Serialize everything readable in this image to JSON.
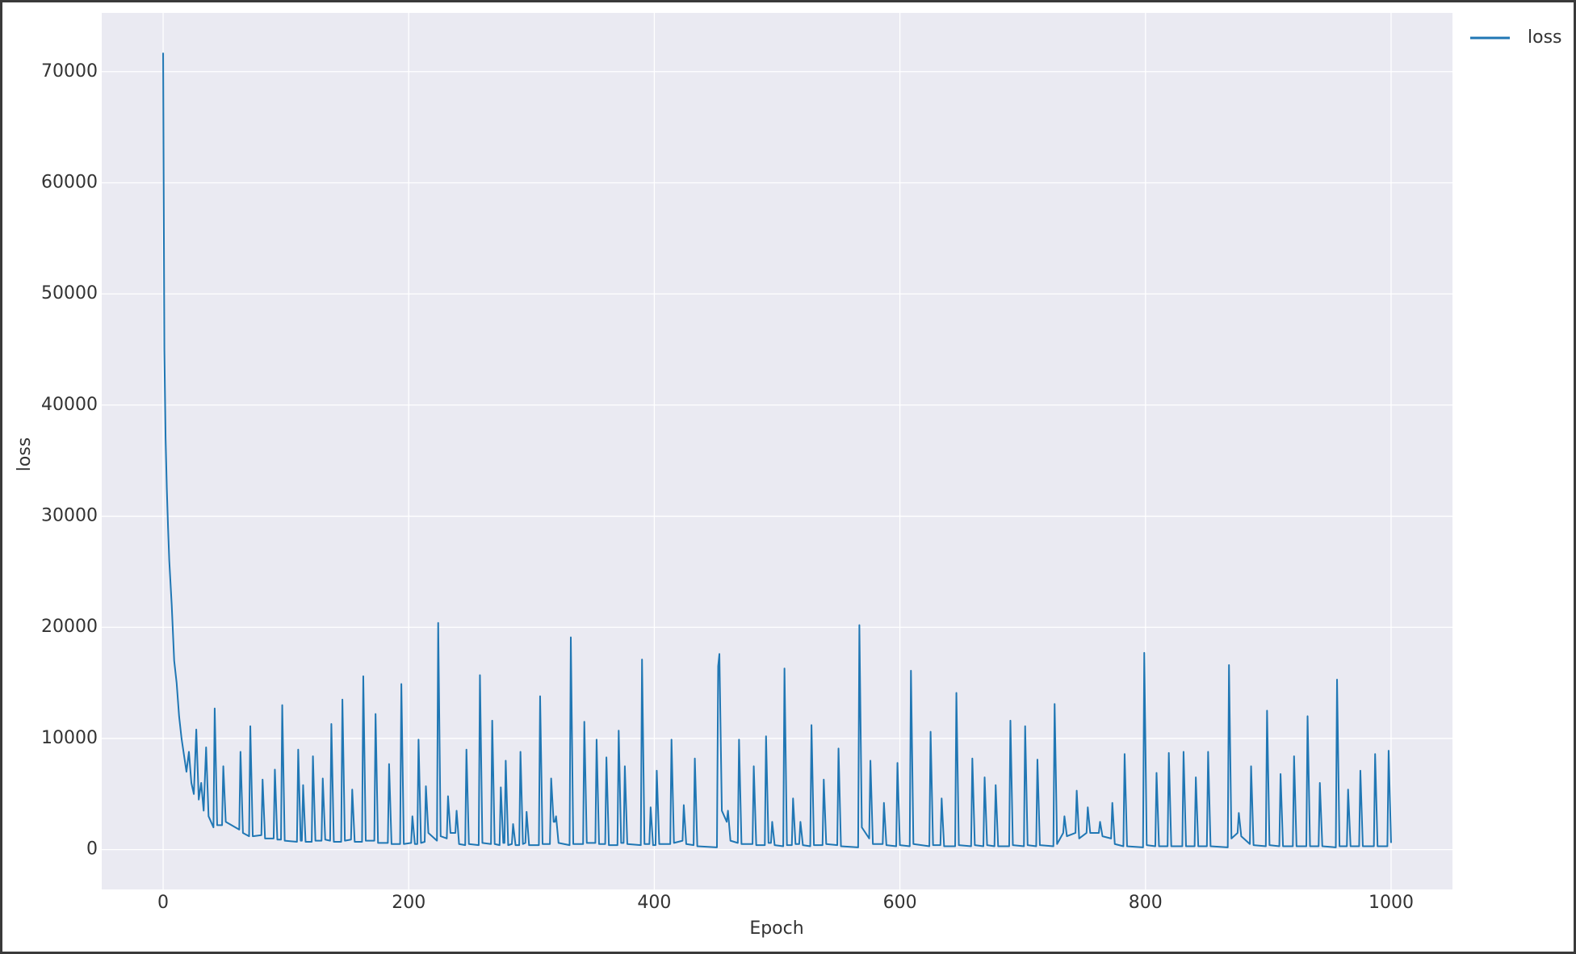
{
  "chart_data": {
    "type": "line",
    "xlabel": "Epoch",
    "ylabel": "loss",
    "xlim": [
      -50,
      1050
    ],
    "ylim": [
      -3585,
      75285
    ],
    "xticks": [
      0,
      200,
      400,
      600,
      800,
      1000
    ],
    "yticks": [
      0,
      10000,
      20000,
      30000,
      40000,
      50000,
      60000,
      70000
    ],
    "grid": true,
    "legend": "upper right",
    "x": [
      0,
      1,
      2,
      3,
      4,
      5,
      7,
      9,
      11,
      13,
      15,
      17,
      19,
      21,
      23,
      25,
      27,
      29,
      31,
      33,
      35,
      37,
      39,
      41,
      42,
      44,
      48,
      49,
      51,
      62,
      63,
      65,
      70,
      71,
      73,
      80,
      81,
      83,
      90,
      91,
      93,
      96,
      97,
      99,
      109,
      110,
      112,
      113,
      114,
      116,
      121,
      122,
      124,
      129,
      130,
      132,
      136,
      137,
      139,
      145,
      146,
      148,
      153,
      154,
      156,
      162,
      163,
      165,
      172,
      173,
      175,
      183,
      184,
      186,
      193,
      194,
      196,
      202,
      203,
      205,
      207,
      208,
      210,
      213,
      214,
      216,
      223,
      224,
      226,
      231,
      232,
      234,
      238,
      239,
      241,
      246,
      247,
      249,
      257,
      258,
      260,
      267,
      268,
      270,
      274,
      275,
      277,
      278,
      279,
      281,
      284,
      285,
      287,
      290,
      291,
      293,
      295,
      296,
      298,
      306,
      307,
      309,
      315,
      316,
      318,
      319,
      320,
      322,
      331,
      332,
      334,
      342,
      343,
      345,
      352,
      353,
      355,
      360,
      361,
      363,
      370,
      371,
      373,
      375,
      376,
      378,
      389,
      390,
      392,
      396,
      397,
      399,
      401,
      402,
      404,
      413,
      414,
      416,
      423,
      424,
      426,
      432,
      433,
      435,
      451,
      452,
      453,
      455,
      459,
      460,
      462,
      468,
      469,
      471,
      480,
      481,
      483,
      490,
      491,
      493,
      495,
      496,
      498,
      505,
      506,
      508,
      512,
      513,
      515,
      518,
      519,
      521,
      527,
      528,
      530,
      537,
      538,
      540,
      549,
      550,
      552,
      566,
      567,
      569,
      575,
      576,
      578,
      586,
      587,
      589,
      597,
      598,
      600,
      608,
      609,
      611,
      624,
      625,
      627,
      633,
      634,
      636,
      645,
      646,
      648,
      658,
      659,
      661,
      668,
      669,
      671,
      677,
      678,
      680,
      689,
      690,
      692,
      701,
      702,
      704,
      711,
      712,
      714,
      725,
      726,
      728,
      733,
      734,
      736,
      743,
      744,
      746,
      752,
      753,
      755,
      762,
      763,
      765,
      772,
      773,
      775,
      782,
      783,
      785,
      798,
      799,
      801,
      808,
      809,
      811,
      818,
      819,
      821,
      830,
      831,
      833,
      840,
      841,
      843,
      850,
      851,
      853,
      867,
      868,
      870,
      875,
      876,
      878,
      885,
      886,
      888,
      898,
      899,
      901,
      909,
      910,
      912,
      920,
      921,
      923,
      931,
      932,
      934,
      941,
      942,
      944,
      955,
      956,
      958,
      964,
      965,
      967,
      974,
      975,
      977,
      986,
      987,
      989,
      997,
      998,
      1000
    ],
    "series": [
      {
        "name": "loss",
        "color": "#2077b4",
        "values": [
          71700,
          45000,
          37000,
          32500,
          29000,
          26000,
          22000,
          17000,
          15000,
          12000,
          10000,
          8500,
          7000,
          8800,
          6000,
          5000,
          10800,
          4500,
          6000,
          3500,
          9200,
          3000,
          2500,
          2000,
          12700,
          2200,
          2200,
          7500,
          2500,
          1800,
          8800,
          1500,
          1200,
          11100,
          1200,
          1300,
          6300,
          1000,
          1000,
          7200,
          900,
          900,
          13000,
          800,
          700,
          9000,
          800,
          800,
          5800,
          700,
          700,
          8400,
          800,
          800,
          6400,
          900,
          800,
          11300,
          700,
          700,
          13500,
          800,
          900,
          5400,
          700,
          700,
          15600,
          800,
          800,
          12200,
          600,
          600,
          7700,
          500,
          500,
          14900,
          500,
          600,
          3000,
          500,
          500,
          9900,
          600,
          700,
          5700,
          1500,
          800,
          20400,
          1200,
          1000,
          4800,
          1500,
          1500,
          3500,
          500,
          400,
          9000,
          500,
          400,
          15700,
          600,
          500,
          11600,
          500,
          400,
          5600,
          600,
          600,
          8000,
          400,
          500,
          2300,
          400,
          400,
          8800,
          500,
          600,
          3400,
          400,
          400,
          13800,
          500,
          500,
          6400,
          2500,
          2500,
          3000,
          600,
          400,
          19100,
          500,
          500,
          11500,
          600,
          600,
          9900,
          500,
          500,
          8300,
          400,
          400,
          10700,
          600,
          600,
          7500,
          500,
          400,
          17100,
          500,
          500,
          3800,
          400,
          400,
          7100,
          500,
          500,
          9900,
          600,
          800,
          4000,
          500,
          400,
          8200,
          300,
          200,
          16500,
          17600,
          3500,
          2500,
          3500,
          800,
          600,
          9900,
          500,
          500,
          7500,
          400,
          400,
          10200,
          600,
          600,
          2500,
          400,
          300,
          16300,
          400,
          400,
          4600,
          500,
          500,
          2500,
          400,
          300,
          11200,
          400,
          400,
          6300,
          500,
          400,
          9100,
          300,
          200,
          20200,
          2000,
          1000,
          8000,
          500,
          500,
          4200,
          400,
          300,
          7800,
          400,
          300,
          16100,
          500,
          300,
          10600,
          400,
          400,
          4600,
          300,
          300,
          14100,
          400,
          300,
          8200,
          400,
          300,
          6500,
          400,
          300,
          5800,
          300,
          300,
          11600,
          400,
          300,
          11100,
          400,
          300,
          8100,
          400,
          300,
          13100,
          500,
          1500,
          3000,
          1200,
          1500,
          5300,
          1000,
          1500,
          3800,
          1500,
          1500,
          2500,
          1200,
          1000,
          4200,
          500,
          300,
          8600,
          300,
          200,
          17700,
          400,
          300,
          6900,
          300,
          300,
          8700,
          300,
          300,
          8800,
          300,
          300,
          6500,
          300,
          300,
          8800,
          300,
          200,
          16600,
          1000,
          1500,
          3300,
          1200,
          500,
          7500,
          400,
          300,
          12500,
          400,
          300,
          6800,
          300,
          300,
          8400,
          300,
          300,
          12000,
          300,
          300,
          6000,
          300,
          200,
          15300,
          300,
          300,
          5400,
          300,
          300,
          7100,
          300,
          300,
          8600,
          300,
          300,
          8900,
          600
        ]
      }
    ]
  }
}
